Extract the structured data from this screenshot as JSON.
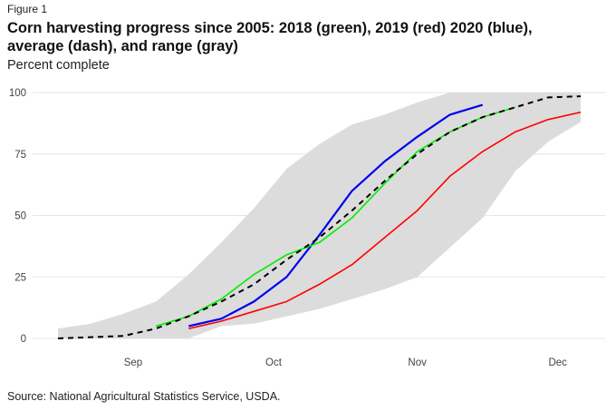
{
  "figure_label": "Figure 1",
  "chart_data": {
    "type": "line",
    "title": "Corn harvesting progress since 2005: 2018 (green), 2019 (red) 2020 (blue), average (dash), and range (gray)",
    "ylabel": "Percent complete",
    "xlabel": "",
    "ylim": [
      0,
      100
    ],
    "yticks": [
      0,
      25,
      50,
      75,
      100
    ],
    "x_unit": "week index",
    "x": [
      0,
      1,
      2,
      3,
      4,
      5,
      6,
      7,
      8,
      9,
      10,
      11,
      12,
      13,
      14,
      15,
      16
    ],
    "xticks": [
      {
        "label": "Sep",
        "x": 2.3
      },
      {
        "label": "Oct",
        "x": 6.6
      },
      {
        "label": "Nov",
        "x": 11.0
      },
      {
        "label": "Dec",
        "x": 15.3
      }
    ],
    "grid": true,
    "range": {
      "name": "range",
      "color": "#dcdcdc",
      "lower": [
        0,
        0,
        0,
        0,
        0,
        5,
        6,
        9,
        12,
        16,
        20,
        25,
        37,
        49,
        68,
        80,
        88
      ],
      "upper": [
        4,
        6,
        10,
        15,
        26,
        39,
        53,
        69,
        79,
        87,
        91,
        96,
        100,
        100,
        100,
        100,
        100
      ]
    },
    "series": [
      {
        "name": "average",
        "color": "#000000",
        "dashed": true,
        "start": 0,
        "values": [
          0,
          0.5,
          1,
          4,
          9,
          15,
          22,
          32,
          41,
          52,
          64,
          75,
          84,
          90,
          94,
          98,
          98.5
        ]
      },
      {
        "name": "2018",
        "color": "#00ee00",
        "dashed": false,
        "start": 3,
        "values": [
          5,
          9,
          16,
          26,
          34,
          39,
          49,
          63,
          76,
          84,
          90,
          94
        ]
      },
      {
        "name": "2019",
        "color": "#ff0000",
        "dashed": false,
        "start": 4,
        "values": [
          4,
          7,
          11,
          15,
          22,
          30,
          41,
          52,
          66,
          76,
          84,
          89,
          92
        ]
      },
      {
        "name": "2020",
        "color": "#0000ee",
        "dashed": false,
        "start": 4,
        "values": [
          5,
          8,
          15,
          25,
          42,
          60,
          72,
          82,
          91,
          95
        ]
      }
    ]
  },
  "source": "Source: National Agricultural Statistics Service, USDA."
}
